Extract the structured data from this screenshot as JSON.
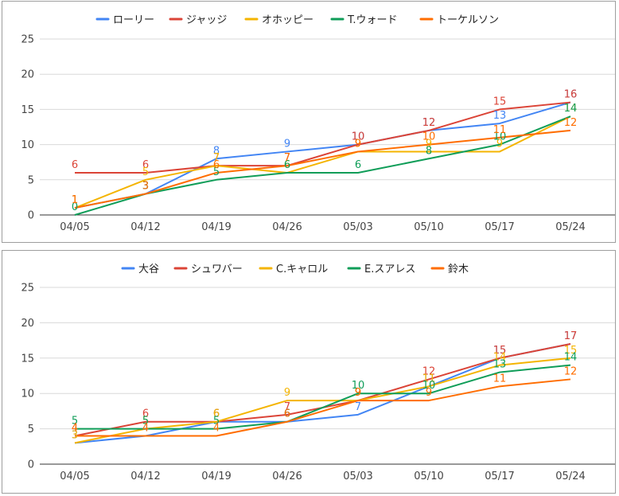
{
  "chart_data": [
    {
      "type": "line",
      "title": "",
      "xlabel": "",
      "ylabel": "",
      "ylim": [
        0,
        25
      ],
      "yticks": [
        0,
        5,
        10,
        15,
        20,
        25
      ],
      "grid": true,
      "legend_position": "top",
      "data_labels": true,
      "x": [
        "04/05",
        "04/12",
        "04/19",
        "04/26",
        "05/03",
        "05/10",
        "05/17",
        "05/24"
      ],
      "series": [
        {
          "name": "ローリー",
          "color": "#4285f4",
          "values": [
            1,
            3,
            8,
            9,
            10,
            12,
            13,
            16
          ]
        },
        {
          "name": "ジャッジ",
          "color": "#db4437",
          "values": [
            6,
            6,
            7,
            7,
            10,
            12,
            15,
            16
          ]
        },
        {
          "name": "オホッピー",
          "color": "#f4b400",
          "values": [
            1,
            5,
            7,
            6,
            9,
            9,
            9,
            14
          ]
        },
        {
          "name": "T.ウォード",
          "color": "#0f9d58",
          "values": [
            0,
            3,
            5,
            6,
            6,
            8,
            10,
            14
          ]
        },
        {
          "name": "トーケルソン",
          "color": "#ff6d00",
          "values": [
            1,
            3,
            6,
            7,
            9,
            10,
            11,
            12
          ]
        }
      ]
    },
    {
      "type": "line",
      "title": "",
      "xlabel": "",
      "ylabel": "",
      "ylim": [
        0,
        25
      ],
      "yticks": [
        0,
        5,
        10,
        15,
        20,
        25
      ],
      "grid": true,
      "legend_position": "top",
      "data_labels": true,
      "x": [
        "04/05",
        "04/12",
        "04/19",
        "04/26",
        "05/03",
        "05/10",
        "05/17",
        "05/24"
      ],
      "series": [
        {
          "name": "大谷",
          "color": "#4285f4",
          "values": [
            3,
            4,
            6,
            6,
            7,
            11,
            15,
            17
          ]
        },
        {
          "name": "シュワバー",
          "color": "#db4437",
          "values": [
            4,
            6,
            6,
            7,
            9,
            12,
            15,
            17
          ]
        },
        {
          "name": "C.キャロル",
          "color": "#f4b400",
          "values": [
            3,
            5,
            6,
            9,
            9,
            11,
            14,
            15
          ]
        },
        {
          "name": "E.スアレス",
          "color": "#0f9d58",
          "values": [
            5,
            5,
            5,
            6,
            10,
            10,
            13,
            14
          ]
        },
        {
          "name": "鈴木",
          "color": "#ff6d00",
          "values": [
            4,
            4,
            4,
            6,
            9,
            9,
            11,
            12
          ]
        }
      ]
    }
  ]
}
